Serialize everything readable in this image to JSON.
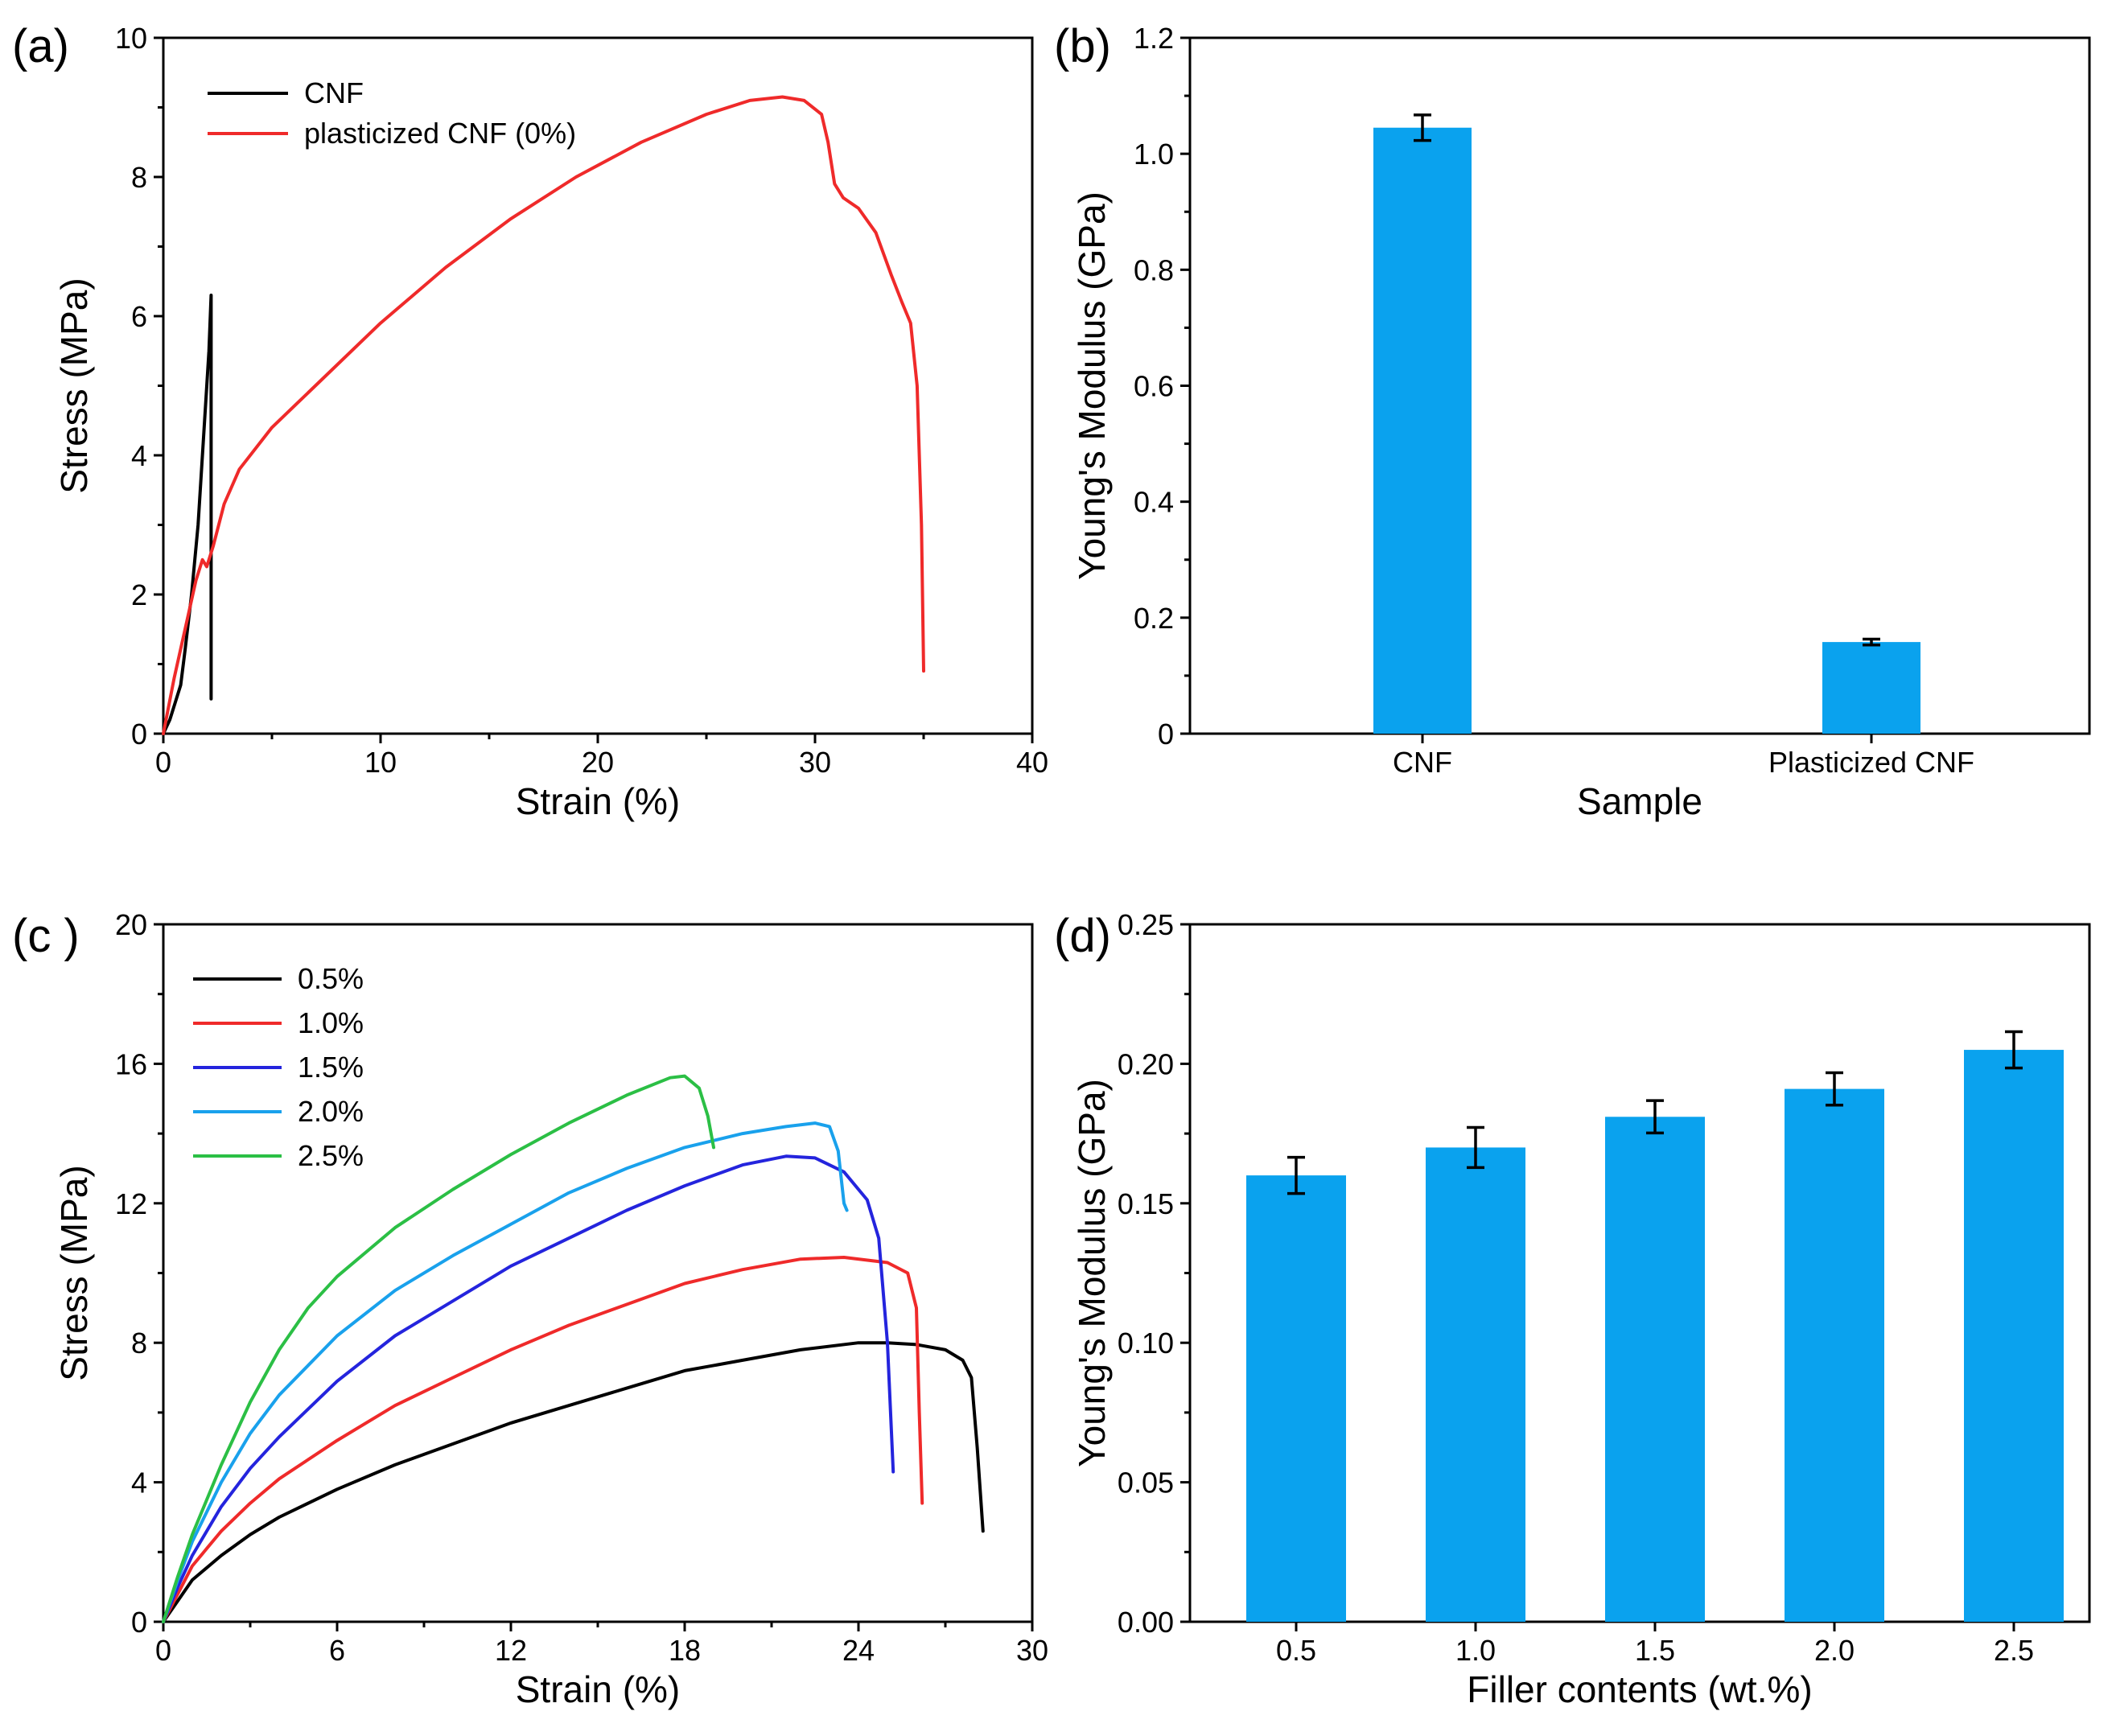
{
  "chart_data": [
    {
      "id": "a",
      "panel_label": "(a)",
      "type": "line",
      "xlabel": "Strain (%)",
      "ylabel": "Stress (MPa)",
      "xlim": [
        0,
        40
      ],
      "ylim": [
        0,
        10
      ],
      "xticks": [
        0,
        10,
        20,
        30,
        40
      ],
      "yticks": [
        0,
        2,
        4,
        6,
        8,
        10
      ],
      "legend_position": "top-left",
      "series": [
        {
          "name": "CNF",
          "color": "#000000",
          "points": [
            [
              0,
              0
            ],
            [
              0.3,
              0.2
            ],
            [
              0.6,
              0.5
            ],
            [
              0.8,
              0.7
            ],
            [
              1.0,
              1.2
            ],
            [
              1.3,
              2.0
            ],
            [
              1.6,
              3.0
            ],
            [
              1.9,
              4.5
            ],
            [
              2.1,
              5.5
            ],
            [
              2.2,
              6.3
            ],
            [
              2.2,
              3.5
            ],
            [
              2.2,
              0.5
            ]
          ]
        },
        {
          "name": "plasticized CNF (0%)",
          "color": "#ef2a2a",
          "points": [
            [
              0,
              0
            ],
            [
              0.5,
              0.8
            ],
            [
              1.0,
              1.5
            ],
            [
              1.5,
              2.2
            ],
            [
              1.8,
              2.5
            ],
            [
              2.0,
              2.4
            ],
            [
              2.3,
              2.7
            ],
            [
              2.8,
              3.3
            ],
            [
              3.5,
              3.8
            ],
            [
              5,
              4.4
            ],
            [
              7,
              5.0
            ],
            [
              10,
              5.9
            ],
            [
              13,
              6.7
            ],
            [
              16,
              7.4
            ],
            [
              19,
              8.0
            ],
            [
              22,
              8.5
            ],
            [
              25,
              8.9
            ],
            [
              27,
              9.1
            ],
            [
              28.5,
              9.15
            ],
            [
              29.5,
              9.1
            ],
            [
              30.3,
              8.9
            ],
            [
              30.6,
              8.5
            ],
            [
              30.9,
              7.9
            ],
            [
              31.3,
              7.7
            ],
            [
              32,
              7.55
            ],
            [
              32.8,
              7.2
            ],
            [
              33.5,
              6.6
            ],
            [
              34,
              6.2
            ],
            [
              34.4,
              5.9
            ],
            [
              34.7,
              5.0
            ],
            [
              34.9,
              3.0
            ],
            [
              35.0,
              0.9
            ]
          ]
        }
      ]
    },
    {
      "id": "b",
      "panel_label": "(b)",
      "type": "bar",
      "xlabel": "Sample",
      "ylabel": "Young's Modulus (GPa)",
      "ylim": [
        0,
        1.2
      ],
      "yticks": [
        "0",
        "0.2",
        "0.4",
        "0.6",
        "0.8",
        "1.0",
        "1.2"
      ],
      "categories": [
        "CNF",
        "Plasticized CNF"
      ],
      "values": [
        1.045,
        0.158
      ],
      "errors": [
        0.022,
        0.005
      ],
      "bar_color": "#0aa2ee"
    },
    {
      "id": "c",
      "panel_label": "(c )",
      "type": "line",
      "xlabel": "Strain (%)",
      "ylabel": "Stress (MPa)",
      "xlim": [
        0,
        30
      ],
      "ylim": [
        0,
        20
      ],
      "xticks": [
        0,
        6,
        12,
        18,
        24,
        30
      ],
      "yticks": [
        0,
        4,
        8,
        12,
        16,
        20
      ],
      "legend_position": "top-left",
      "series": [
        {
          "name": "0.5%",
          "color": "#000000",
          "points": [
            [
              0,
              0
            ],
            [
              0.5,
              0.6
            ],
            [
              1,
              1.2
            ],
            [
              2,
              1.9
            ],
            [
              3,
              2.5
            ],
            [
              4,
              3.0
            ],
            [
              6,
              3.8
            ],
            [
              8,
              4.5
            ],
            [
              10,
              5.1
            ],
            [
              12,
              5.7
            ],
            [
              14,
              6.2
            ],
            [
              16,
              6.7
            ],
            [
              18,
              7.2
            ],
            [
              20,
              7.5
            ],
            [
              22,
              7.8
            ],
            [
              24,
              8.0
            ],
            [
              25,
              8.0
            ],
            [
              26,
              7.95
            ],
            [
              27,
              7.8
            ],
            [
              27.6,
              7.5
            ],
            [
              27.9,
              7.0
            ],
            [
              28.1,
              5.0
            ],
            [
              28.3,
              2.6
            ]
          ]
        },
        {
          "name": "1.0%",
          "color": "#ef2a2a",
          "points": [
            [
              0,
              0
            ],
            [
              0.5,
              0.8
            ],
            [
              1,
              1.6
            ],
            [
              2,
              2.6
            ],
            [
              3,
              3.4
            ],
            [
              4,
              4.1
            ],
            [
              6,
              5.2
            ],
            [
              8,
              6.2
            ],
            [
              10,
              7.0
            ],
            [
              12,
              7.8
            ],
            [
              14,
              8.5
            ],
            [
              16,
              9.1
            ],
            [
              18,
              9.7
            ],
            [
              20,
              10.1
            ],
            [
              22,
              10.4
            ],
            [
              23.5,
              10.45
            ],
            [
              25,
              10.3
            ],
            [
              25.7,
              10.0
            ],
            [
              26.0,
              9.0
            ],
            [
              26.1,
              6.0
            ],
            [
              26.2,
              3.4
            ]
          ]
        },
        {
          "name": "1.5%",
          "color": "#2424dd",
          "points": [
            [
              0,
              0
            ],
            [
              0.5,
              1.0
            ],
            [
              1,
              1.9
            ],
            [
              2,
              3.3
            ],
            [
              3,
              4.4
            ],
            [
              4,
              5.3
            ],
            [
              6,
              6.9
            ],
            [
              8,
              8.2
            ],
            [
              10,
              9.2
            ],
            [
              12,
              10.2
            ],
            [
              14,
              11.0
            ],
            [
              16,
              11.8
            ],
            [
              18,
              12.5
            ],
            [
              20,
              13.1
            ],
            [
              21.5,
              13.35
            ],
            [
              22.5,
              13.3
            ],
            [
              23.5,
              12.9
            ],
            [
              24.3,
              12.1
            ],
            [
              24.7,
              11.0
            ],
            [
              25.0,
              8.0
            ],
            [
              25.2,
              4.3
            ]
          ]
        },
        {
          "name": "2.0%",
          "color": "#19a1ec",
          "points": [
            [
              0,
              0
            ],
            [
              0.5,
              1.2
            ],
            [
              1,
              2.3
            ],
            [
              2,
              4.0
            ],
            [
              3,
              5.4
            ],
            [
              4,
              6.5
            ],
            [
              6,
              8.2
            ],
            [
              8,
              9.5
            ],
            [
              10,
              10.5
            ],
            [
              12,
              11.4
            ],
            [
              14,
              12.3
            ],
            [
              16,
              13.0
            ],
            [
              18,
              13.6
            ],
            [
              20,
              14.0
            ],
            [
              21.5,
              14.2
            ],
            [
              22.5,
              14.3
            ],
            [
              23.0,
              14.2
            ],
            [
              23.3,
              13.5
            ],
            [
              23.5,
              12.0
            ],
            [
              23.6,
              11.8
            ]
          ]
        },
        {
          "name": "2.5%",
          "color": "#2bbf45",
          "points": [
            [
              0,
              0
            ],
            [
              0.5,
              1.3
            ],
            [
              1,
              2.5
            ],
            [
              2,
              4.5
            ],
            [
              3,
              6.3
            ],
            [
              4,
              7.8
            ],
            [
              5,
              9.0
            ],
            [
              6,
              9.9
            ],
            [
              8,
              11.3
            ],
            [
              10,
              12.4
            ],
            [
              12,
              13.4
            ],
            [
              14,
              14.3
            ],
            [
              16,
              15.1
            ],
            [
              17.5,
              15.6
            ],
            [
              18.0,
              15.65
            ],
            [
              18.5,
              15.3
            ],
            [
              18.8,
              14.5
            ],
            [
              19.0,
              13.6
            ]
          ]
        }
      ]
    },
    {
      "id": "d",
      "panel_label": "(d)",
      "type": "bar",
      "xlabel": "Filler contents (wt.%)",
      "ylabel": "Young's Modulus (GPa)",
      "ylim": [
        0,
        0.25
      ],
      "yticks": [
        "0.00",
        "0.05",
        "0.10",
        "0.15",
        "0.20",
        "0.25"
      ],
      "categories": [
        "0.5",
        "1.0",
        "1.5",
        "2.0",
        "2.5"
      ],
      "values": [
        0.16,
        0.17,
        0.181,
        0.191,
        0.205
      ],
      "errors": [
        0.0065,
        0.0072,
        0.0058,
        0.0058,
        0.0065
      ],
      "bar_color": "#0aa2ee"
    }
  ]
}
